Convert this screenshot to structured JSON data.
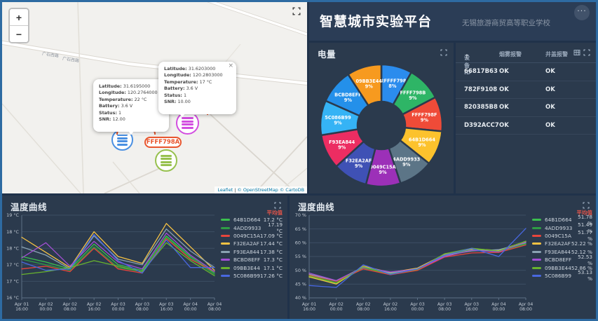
{
  "header": {
    "title": "智慧城市实验平台",
    "subtitle": "无锡旅游商贸高等职业学校",
    "menu_dots": "···"
  },
  "map": {
    "zoom_in": "+",
    "zoom_out": "−",
    "street_label": "广石西路",
    "street_label2": "广石西路",
    "device_pill": "FFFF798A",
    "pill_border_color": "#e8552d",
    "attribution": {
      "leaflet": "Leaflet",
      "sep": "|",
      "osm": "© OpenStreetMap",
      "carto": "© CartoDB"
    },
    "markers": [
      {
        "name": "blue-battery-marker",
        "color": "#4a90e2"
      },
      {
        "name": "magenta-battery-marker",
        "color": "#d24ee0"
      },
      {
        "name": "green-battery-marker",
        "color": "#97c14e"
      }
    ],
    "popups": [
      {
        "close": "×",
        "fields": [
          {
            "label": "Latitude:",
            "value": "31.6195000"
          },
          {
            "label": "Longitude:",
            "value": "120.2764000"
          },
          {
            "label": "Temperature:",
            "value": "22 °C"
          },
          {
            "label": "Battery:",
            "value": "3.6 V"
          },
          {
            "label": "Status:",
            "value": "1"
          },
          {
            "label": "SNR:",
            "value": "12.00"
          }
        ]
      },
      {
        "close": "×",
        "fields": [
          {
            "label": "Latitude:",
            "value": "31.6203000"
          },
          {
            "label": "Longitude:",
            "value": "120.2803000"
          },
          {
            "label": "Temperature:",
            "value": "17 °C"
          },
          {
            "label": "Battery:",
            "value": "3.6 V"
          },
          {
            "label": "Status:",
            "value": "1"
          },
          {
            "label": "SNR:",
            "value": "10.00"
          }
        ]
      }
    ]
  },
  "battery_panel": {
    "title": "电量",
    "chart_data": {
      "type": "pie",
      "title": "电量",
      "slices": [
        {
          "name": "batFFFF798A",
          "pct": 8,
          "color": "#2b8ced"
        },
        {
          "name": "FFFF798B",
          "pct": 9,
          "color": "#2eb566"
        },
        {
          "name": "FFFF798F",
          "pct": 9,
          "color": "#ef4b38"
        },
        {
          "name": "64B1D664",
          "pct": 9,
          "color": "#fcc22d"
        },
        {
          "name": "4ADD9933",
          "pct": 9,
          "color": "#5c7587"
        },
        {
          "name": "0049C15A",
          "pct": 9,
          "color": "#9c30b8"
        },
        {
          "name": "F32EA2AF",
          "pct": 9,
          "color": "#3f51b5"
        },
        {
          "name": "F93EA844",
          "pct": 9,
          "color": "#ec2d62"
        },
        {
          "name": "5C086B99",
          "pct": 9,
          "color": "#35b3f5"
        },
        {
          "name": "BCBD8EFF",
          "pct": 9,
          "color": "#2490ea"
        },
        {
          "name": "09BB3E44",
          "pct": 9,
          "color": "#f79a1f"
        }
      ]
    }
  },
  "device_table": {
    "headers": [
      "设备ID",
      "烟雾报警",
      "井盖报警"
    ],
    "sort_icon": "↑",
    "rows": [
      [
        "66817B63",
        "OK",
        "OK"
      ],
      [
        "782F9108",
        "OK",
        "OK"
      ],
      [
        "820385B8",
        "OK",
        "OK"
      ],
      [
        "D392ACC7",
        "OK",
        "OK"
      ]
    ]
  },
  "temperature_panel": {
    "title": "温度曲线",
    "avg_label": "平均值",
    "chart_data": {
      "type": "line",
      "x": [
        [
          "Apr 01",
          "16:00"
        ],
        [
          "Apr 02",
          "00:00"
        ],
        [
          "Apr 02",
          "08:00"
        ],
        [
          "Apr 02",
          "16:00"
        ],
        [
          "Apr 03",
          "00:00"
        ],
        [
          "Apr 03",
          "08:00"
        ],
        [
          "Apr 03",
          "16:00"
        ],
        [
          "Apr 04",
          "00:00"
        ],
        [
          "Apr 04",
          "08:00"
        ]
      ],
      "ylim": [
        16,
        19
      ],
      "yticks": [
        {
          "v": 16,
          "label": "16 °C"
        },
        {
          "v": 16.6,
          "label": "17 °C"
        },
        {
          "v": 17.2,
          "label": "17 °C"
        },
        {
          "v": 17.8,
          "label": "18 °C"
        },
        {
          "v": 18.4,
          "label": "18 °C"
        },
        {
          "v": 19,
          "label": "19 °C"
        }
      ],
      "series": [
        {
          "name": "64B1D664",
          "color": "#3bbf4e",
          "avg": "17.2 °C",
          "values": [
            17.5,
            17.3,
            17.05,
            17.95,
            17.2,
            17.0,
            18.25,
            17.5,
            16.9
          ]
        },
        {
          "name": "4ADD9933",
          "color": "#2f9e44",
          "avg": "17.19 °C",
          "values": [
            17.4,
            17.2,
            17.0,
            17.85,
            17.1,
            16.95,
            18.2,
            17.45,
            16.85
          ]
        },
        {
          "name": "0049C15A",
          "color": "#e8453c",
          "avg": "17.09 °C",
          "values": [
            17.05,
            17.15,
            16.95,
            17.8,
            17.05,
            16.9,
            18.15,
            17.4,
            16.95
          ]
        },
        {
          "name": "F32EA2AF",
          "color": "#f6c243",
          "avg": "17.44 °C",
          "values": [
            18.2,
            17.65,
            17.1,
            18.4,
            17.5,
            17.25,
            18.7,
            17.85,
            17.0
          ]
        },
        {
          "name": "F93EA844",
          "color": "#8aa2b2",
          "avg": "17.38 °C",
          "values": [
            17.85,
            17.55,
            17.05,
            18.25,
            17.4,
            17.2,
            18.5,
            17.7,
            17.1
          ]
        },
        {
          "name": "BCBD8EFF",
          "color": "#a34fd4",
          "avg": "17.3 °C",
          "values": [
            17.45,
            18.0,
            17.15,
            18.05,
            17.3,
            17.05,
            18.35,
            17.55,
            16.95
          ]
        },
        {
          "name": "09BB3E44",
          "color": "#69b42e",
          "avg": "17.1 °C",
          "values": [
            16.85,
            16.95,
            17.1,
            17.35,
            17.15,
            16.95,
            18.0,
            17.35,
            16.8
          ]
        },
        {
          "name": "5C086B99",
          "color": "#4968e0",
          "avg": "17.26 °C",
          "values": [
            17.3,
            17.0,
            17.05,
            18.3,
            17.35,
            16.9,
            18.1,
            17.1,
            17.1
          ]
        }
      ]
    }
  },
  "humidity_panel": {
    "title": "湿度曲线",
    "avg_label": "平均值",
    "chart_data": {
      "type": "line",
      "x": [
        [
          "Apr 01",
          "16:00"
        ],
        [
          "Apr 02",
          "00:00"
        ],
        [
          "Apr 02",
          "08:00"
        ],
        [
          "Apr 02",
          "16:00"
        ],
        [
          "Apr 03",
          "00:00"
        ],
        [
          "Apr 03",
          "08:00"
        ],
        [
          "Apr 03",
          "16:00"
        ],
        [
          "Apr 04",
          "00:00"
        ],
        [
          "Apr 04",
          "08:00"
        ]
      ],
      "ylim": [
        40,
        70
      ],
      "yticks": [
        {
          "v": 40,
          "label": "40 %"
        },
        {
          "v": 45,
          "label": "45 %"
        },
        {
          "v": 50,
          "label": "50 %"
        },
        {
          "v": 55,
          "label": "55 %"
        },
        {
          "v": 60,
          "label": "60 %"
        },
        {
          "v": 65,
          "label": "65 %"
        },
        {
          "v": 70,
          "label": "70 %"
        }
      ],
      "series": [
        {
          "name": "64B1D664",
          "color": "#3bbf4e",
          "avg": "51.78 %",
          "values": [
            48.0,
            45.5,
            51.0,
            48.8,
            50.5,
            55.5,
            57.5,
            57.0,
            59.8
          ]
        },
        {
          "name": "4ADD9933",
          "color": "#2f9e44",
          "avg": "51.49 %",
          "values": [
            47.8,
            45.2,
            50.8,
            48.5,
            50.2,
            55.2,
            57.2,
            56.8,
            59.5
          ]
        },
        {
          "name": "0049C15A",
          "color": "#e8453c",
          "avg": "51.77 %",
          "values": [
            48.3,
            46.0,
            50.5,
            48.4,
            50.0,
            54.8,
            56.3,
            56.5,
            59.2
          ]
        },
        {
          "name": "F32EA2AF",
          "color": "#f6c243",
          "avg": "52.22 %",
          "values": [
            47.6,
            45.0,
            51.5,
            49.2,
            50.8,
            55.8,
            57.8,
            57.2,
            60.5
          ]
        },
        {
          "name": "F93EA844",
          "color": "#8aa2b2",
          "avg": "52.12 %",
          "values": [
            48.6,
            46.2,
            51.2,
            49.0,
            50.6,
            55.4,
            57.0,
            57.5,
            60.0
          ]
        },
        {
          "name": "BCBD8EFF",
          "color": "#a34fd4",
          "avg": "52.53 %",
          "values": [
            49.0,
            46.3,
            51.0,
            49.4,
            50.4,
            55.0,
            57.3,
            56.7,
            60.2
          ]
        },
        {
          "name": "09BB3E44",
          "color": "#69b42e",
          "avg": "52.86 %",
          "values": [
            47.9,
            45.4,
            51.3,
            48.6,
            50.3,
            56.0,
            58.0,
            57.0,
            60.6
          ]
        },
        {
          "name": "5C086B99",
          "color": "#4968e0",
          "avg": "53.13 %",
          "values": [
            44.5,
            43.8,
            52.0,
            48.5,
            50.5,
            55.5,
            58.0,
            55.0,
            65.2
          ]
        }
      ]
    }
  }
}
